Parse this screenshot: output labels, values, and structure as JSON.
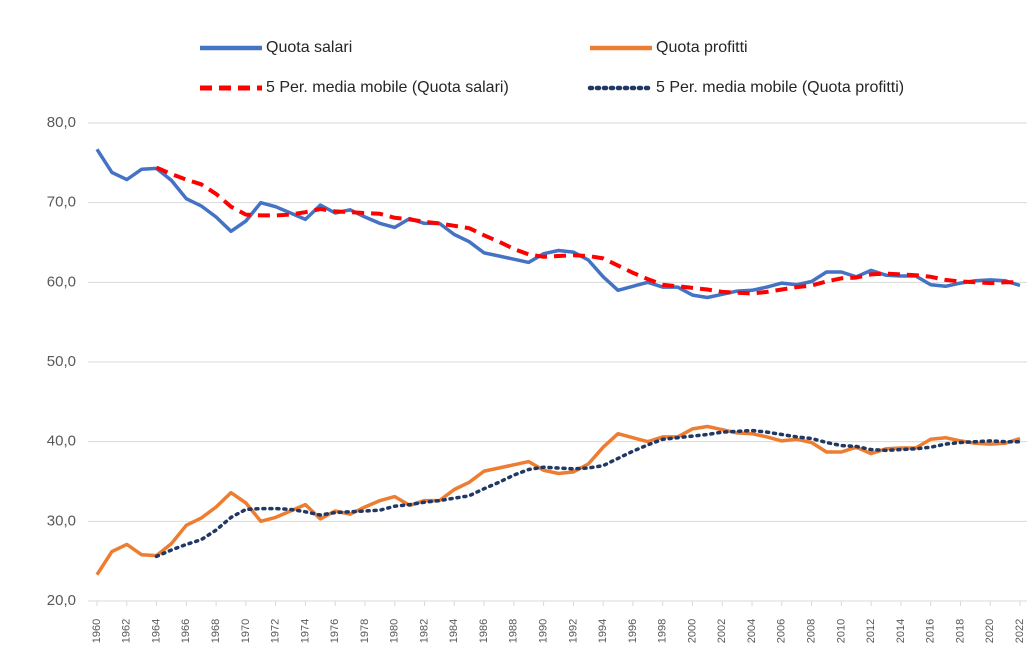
{
  "chart_data": {
    "type": "line",
    "x": [
      1960,
      1961,
      1962,
      1963,
      1964,
      1965,
      1966,
      1967,
      1968,
      1969,
      1970,
      1971,
      1972,
      1973,
      1974,
      1975,
      1976,
      1977,
      1978,
      1979,
      1980,
      1981,
      1982,
      1983,
      1984,
      1985,
      1986,
      1987,
      1988,
      1989,
      1990,
      1991,
      1992,
      1993,
      1994,
      1995,
      1996,
      1997,
      1998,
      1999,
      2000,
      2001,
      2002,
      2003,
      2004,
      2005,
      2006,
      2007,
      2008,
      2009,
      2010,
      2011,
      2012,
      2013,
      2014,
      2015,
      2016,
      2017,
      2018,
      2019,
      2020,
      2021,
      2022
    ],
    "xlim": [
      1960,
      2022
    ],
    "xticks": [
      1960,
      1962,
      1964,
      1966,
      1968,
      1970,
      1972,
      1974,
      1976,
      1978,
      1980,
      1982,
      1984,
      1986,
      1988,
      1990,
      1992,
      1994,
      1996,
      1998,
      2000,
      2002,
      2004,
      2006,
      2008,
      2010,
      2012,
      2014,
      2016,
      2018,
      2020,
      2022
    ],
    "ylim": [
      20,
      80
    ],
    "yticks": [
      {
        "value": 20,
        "label": "20,0"
      },
      {
        "value": 30,
        "label": "30,0"
      },
      {
        "value": 40,
        "label": "40,0"
      },
      {
        "value": 50,
        "label": "50,0"
      },
      {
        "value": 60,
        "label": "60,0"
      },
      {
        "value": 70,
        "label": "70,0"
      },
      {
        "value": 80,
        "label": "80,0"
      }
    ],
    "grid": true,
    "legend": "top",
    "series": [
      {
        "name": "Quota salari",
        "color": "#4472c4",
        "dash": "solid",
        "values": [
          76.7,
          73.8,
          72.9,
          74.2,
          74.3,
          72.8,
          70.5,
          69.6,
          68.2,
          66.4,
          67.7,
          70.0,
          69.5,
          68.7,
          67.9,
          69.7,
          68.7,
          69.1,
          68.2,
          67.4,
          66.9,
          68.0,
          67.4,
          67.4,
          66.0,
          65.1,
          63.7,
          63.3,
          62.9,
          62.5,
          63.6,
          64.0,
          63.8,
          62.8,
          60.7,
          59.0,
          59.5,
          60.0,
          59.4,
          59.4,
          58.4,
          58.1,
          58.5,
          58.9,
          59.0,
          59.4,
          59.9,
          59.7,
          60.1,
          61.3,
          61.3,
          60.7,
          61.5,
          60.9,
          60.8,
          60.8,
          59.7,
          59.5,
          59.9,
          60.2,
          60.3,
          60.2,
          59.6
        ]
      },
      {
        "name": "Quota profitti",
        "color": "#ed7d31",
        "dash": "solid",
        "values": [
          23.3,
          26.2,
          27.1,
          25.8,
          25.7,
          27.2,
          29.5,
          30.4,
          31.8,
          33.6,
          32.3,
          30.0,
          30.5,
          31.3,
          32.1,
          30.3,
          31.3,
          30.9,
          31.8,
          32.6,
          33.1,
          32.0,
          32.6,
          32.6,
          34.0,
          34.9,
          36.3,
          36.7,
          37.1,
          37.5,
          36.4,
          36.0,
          36.2,
          37.2,
          39.3,
          41.0,
          40.5,
          40.0,
          40.6,
          40.6,
          41.6,
          41.9,
          41.5,
          41.1,
          41.0,
          40.6,
          40.1,
          40.3,
          39.9,
          38.7,
          38.7,
          39.3,
          38.5,
          39.1,
          39.2,
          39.2,
          40.3,
          40.5,
          40.1,
          39.8,
          39.7,
          39.8,
          40.4
        ]
      },
      {
        "name": "5 Per. media mobile (Quota salari)",
        "color": "#ff0000",
        "dash": "dashed",
        "values": [
          null,
          null,
          null,
          null,
          74.4,
          73.6,
          72.9,
          72.3,
          71.1,
          69.5,
          68.5,
          68.4,
          68.4,
          68.5,
          68.8,
          69.2,
          68.9,
          68.8,
          68.7,
          68.6,
          68.1,
          67.9,
          67.6,
          67.4,
          67.1,
          66.8,
          65.9,
          65.1,
          64.2,
          63.5,
          63.2,
          63.3,
          63.4,
          63.3,
          63.0,
          62.1,
          61.2,
          60.4,
          59.7,
          59.5,
          59.3,
          59.1,
          58.8,
          58.7,
          58.6,
          58.8,
          59.1,
          59.4,
          59.6,
          60.1,
          60.5,
          60.6,
          61.0,
          61.1,
          61.0,
          60.9,
          60.7,
          60.3,
          60.1,
          60.0,
          59.9,
          60.0,
          60.0
        ]
      },
      {
        "name": "5 Per. media mobile (Quota profitti)",
        "color": "#203864",
        "dash": "dotted",
        "values": [
          null,
          null,
          null,
          null,
          25.6,
          26.4,
          27.1,
          27.7,
          28.9,
          30.5,
          31.5,
          31.6,
          31.6,
          31.5,
          31.2,
          30.8,
          31.1,
          31.2,
          31.3,
          31.4,
          31.9,
          32.1,
          32.4,
          32.6,
          32.9,
          33.2,
          34.1,
          34.9,
          35.8,
          36.5,
          36.8,
          36.7,
          36.6,
          36.7,
          37.0,
          37.9,
          38.8,
          39.6,
          40.3,
          40.5,
          40.7,
          40.9,
          41.2,
          41.3,
          41.4,
          41.2,
          40.9,
          40.6,
          40.4,
          39.9,
          39.5,
          39.4,
          39.0,
          38.9,
          39.0,
          39.1,
          39.3,
          39.7,
          39.9,
          40.0,
          40.1,
          40.0,
          40.0
        ]
      }
    ]
  }
}
